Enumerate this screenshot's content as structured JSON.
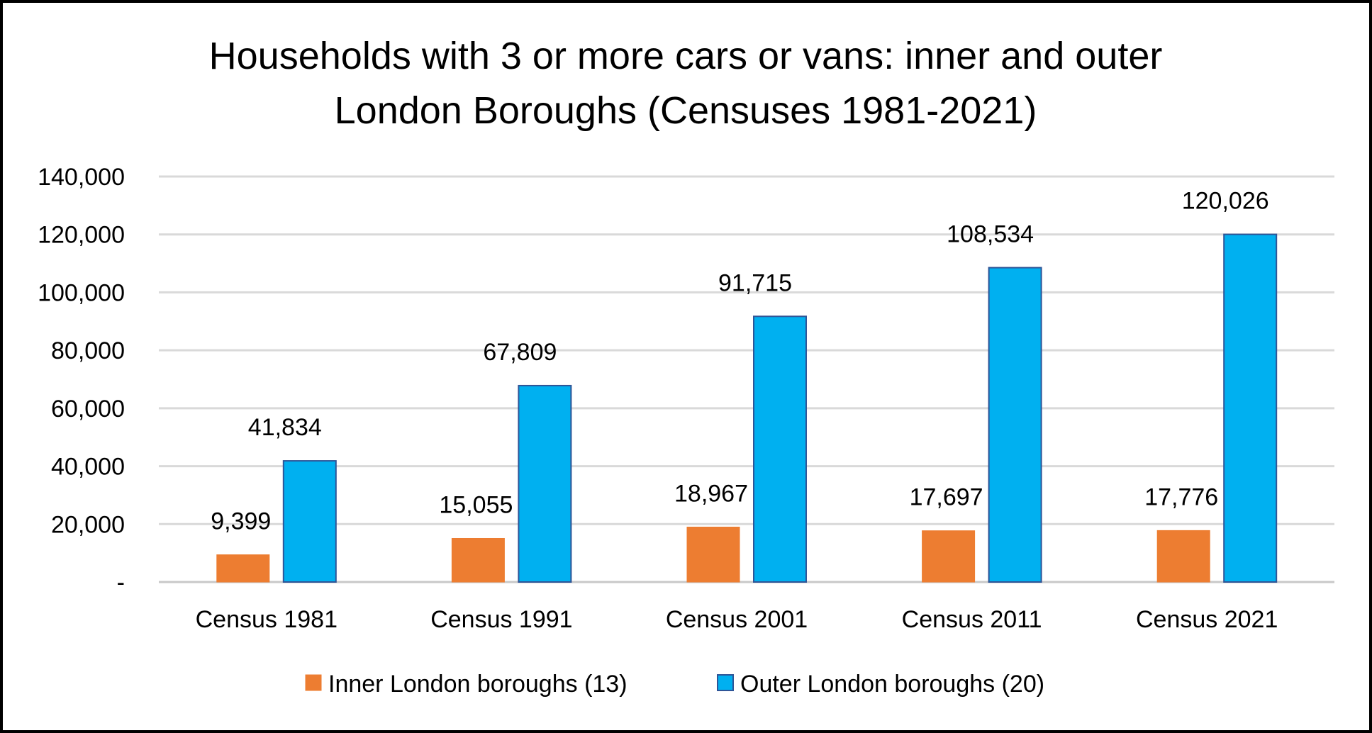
{
  "chart_data": {
    "type": "bar",
    "title_lines": [
      "Households with 3 or more cars or vans: inner and outer",
      "London Boroughs (Censuses 1981-2021)"
    ],
    "categories": [
      "Census 1981",
      "Census 1991",
      "Census 2001",
      "Census 2011",
      "Census 2021"
    ],
    "series": [
      {
        "name": "Inner London boroughs (13)",
        "color": "#ED7D31",
        "stroke": "#ED7D31",
        "values": [
          9399,
          15055,
          18967,
          17697,
          17776
        ]
      },
      {
        "name": "Outer London boroughs (20)",
        "color": "#00B0F0",
        "stroke": "#2F5597",
        "values": [
          41834,
          67809,
          91715,
          108534,
          120026
        ]
      }
    ],
    "ylim": [
      0,
      140000
    ],
    "ytick_labels": [
      "-",
      "20,000",
      "40,000",
      "60,000",
      "80,000",
      "100,000",
      "120,000",
      "140,000"
    ],
    "ytick_values": [
      0,
      20000,
      40000,
      60000,
      80000,
      100000,
      120000,
      140000
    ],
    "data_labels": [
      [
        "9,399",
        "15,055",
        "18,967",
        "17,697",
        "17,776"
      ],
      [
        "41,834",
        "67,809",
        "91,715",
        "108,534",
        "120,026"
      ]
    ],
    "gridlines": true,
    "legend_position": "bottom",
    "xlabel": "",
    "ylabel": ""
  }
}
